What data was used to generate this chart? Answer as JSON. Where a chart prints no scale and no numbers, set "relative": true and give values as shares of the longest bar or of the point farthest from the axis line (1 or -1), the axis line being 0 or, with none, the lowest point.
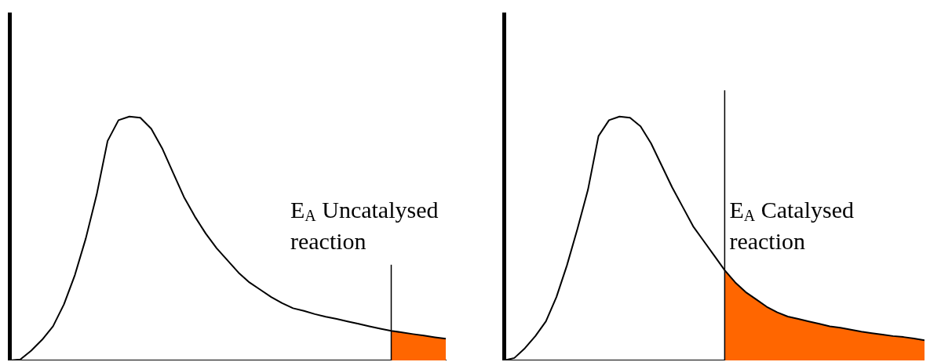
{
  "chart_data": [
    {
      "type": "line",
      "relative": true,
      "marker": "none",
      "categories": [
        null,
        null,
        null,
        null,
        null,
        null,
        null,
        null,
        null,
        null,
        null,
        null,
        null,
        null,
        null,
        null,
        null,
        null,
        null,
        null,
        null,
        null,
        null,
        null,
        null,
        null,
        null,
        null,
        null,
        null,
        null,
        null,
        null,
        null,
        null,
        null,
        null,
        null,
        null,
        null,
        null
      ],
      "series": [
        {
          "type": "line",
          "color": "#000000",
          "values": [
            0.0,
            0.004,
            0.04,
            0.085,
            0.14,
            0.23,
            0.35,
            0.5,
            0.68,
            0.9,
            0.985,
            1.0,
            0.995,
            0.95,
            0.87,
            0.77,
            0.67,
            0.59,
            0.52,
            0.46,
            0.41,
            0.36,
            0.32,
            0.29,
            0.26,
            0.235,
            0.214,
            0.203,
            0.19,
            0.179,
            0.17,
            0.16,
            0.15,
            0.14,
            0.13,
            0.121,
            0.115,
            0.108,
            0.102,
            0.095,
            0.089
          ]
        },
        {
          "type": "area",
          "color": "#ff6600",
          "values": [
            null,
            null,
            null,
            null,
            null,
            null,
            null,
            null,
            null,
            null,
            null,
            null,
            null,
            null,
            null,
            null,
            null,
            null,
            null,
            null,
            null,
            null,
            null,
            null,
            null,
            null,
            null,
            null,
            null,
            null,
            null,
            null,
            null,
            null,
            null,
            0.121,
            0.115,
            0.108,
            0.102,
            0.095,
            0.089
          ]
        }
      ],
      "annotations": [
        "E$_{A}$ Uncatalysed reaction"
      ]
    },
    {
      "type": "line",
      "relative": true,
      "marker": "none",
      "categories": [
        null,
        null,
        null,
        null,
        null,
        null,
        null,
        null,
        null,
        null,
        null,
        null,
        null,
        null,
        null,
        null,
        null,
        null,
        null,
        null,
        null,
        null,
        null,
        null,
        null,
        null,
        null,
        null,
        null,
        null,
        null,
        null,
        null,
        null,
        null,
        null,
        null,
        null,
        null,
        null,
        null
      ],
      "series": [
        {
          "type": "line",
          "color": "#000000",
          "values": [
            0.0,
            0.01,
            0.05,
            0.1,
            0.16,
            0.26,
            0.39,
            0.54,
            0.7,
            0.92,
            0.985,
            1.0,
            0.995,
            0.96,
            0.89,
            0.8,
            0.71,
            0.63,
            0.55,
            0.49,
            0.43,
            0.37,
            0.32,
            0.28,
            0.25,
            0.22,
            0.197,
            0.18,
            0.17,
            0.16,
            0.15,
            0.14,
            0.134,
            0.126,
            0.118,
            0.112,
            0.106,
            0.1,
            0.096,
            0.09,
            0.083
          ]
        },
        {
          "type": "area",
          "color": "#ff6600",
          "values": [
            null,
            null,
            null,
            null,
            null,
            null,
            null,
            null,
            null,
            null,
            null,
            null,
            null,
            null,
            null,
            null,
            null,
            null,
            null,
            null,
            null,
            0.37,
            0.32,
            0.28,
            0.25,
            0.22,
            0.197,
            0.18,
            0.17,
            0.16,
            0.15,
            0.14,
            0.134,
            0.126,
            0.118,
            0.112,
            0.106,
            0.1,
            0.096,
            0.09,
            0.083
          ]
        }
      ],
      "annotations": [
        "E$_{A}$ Catalysed reaction"
      ]
    }
  ]
}
